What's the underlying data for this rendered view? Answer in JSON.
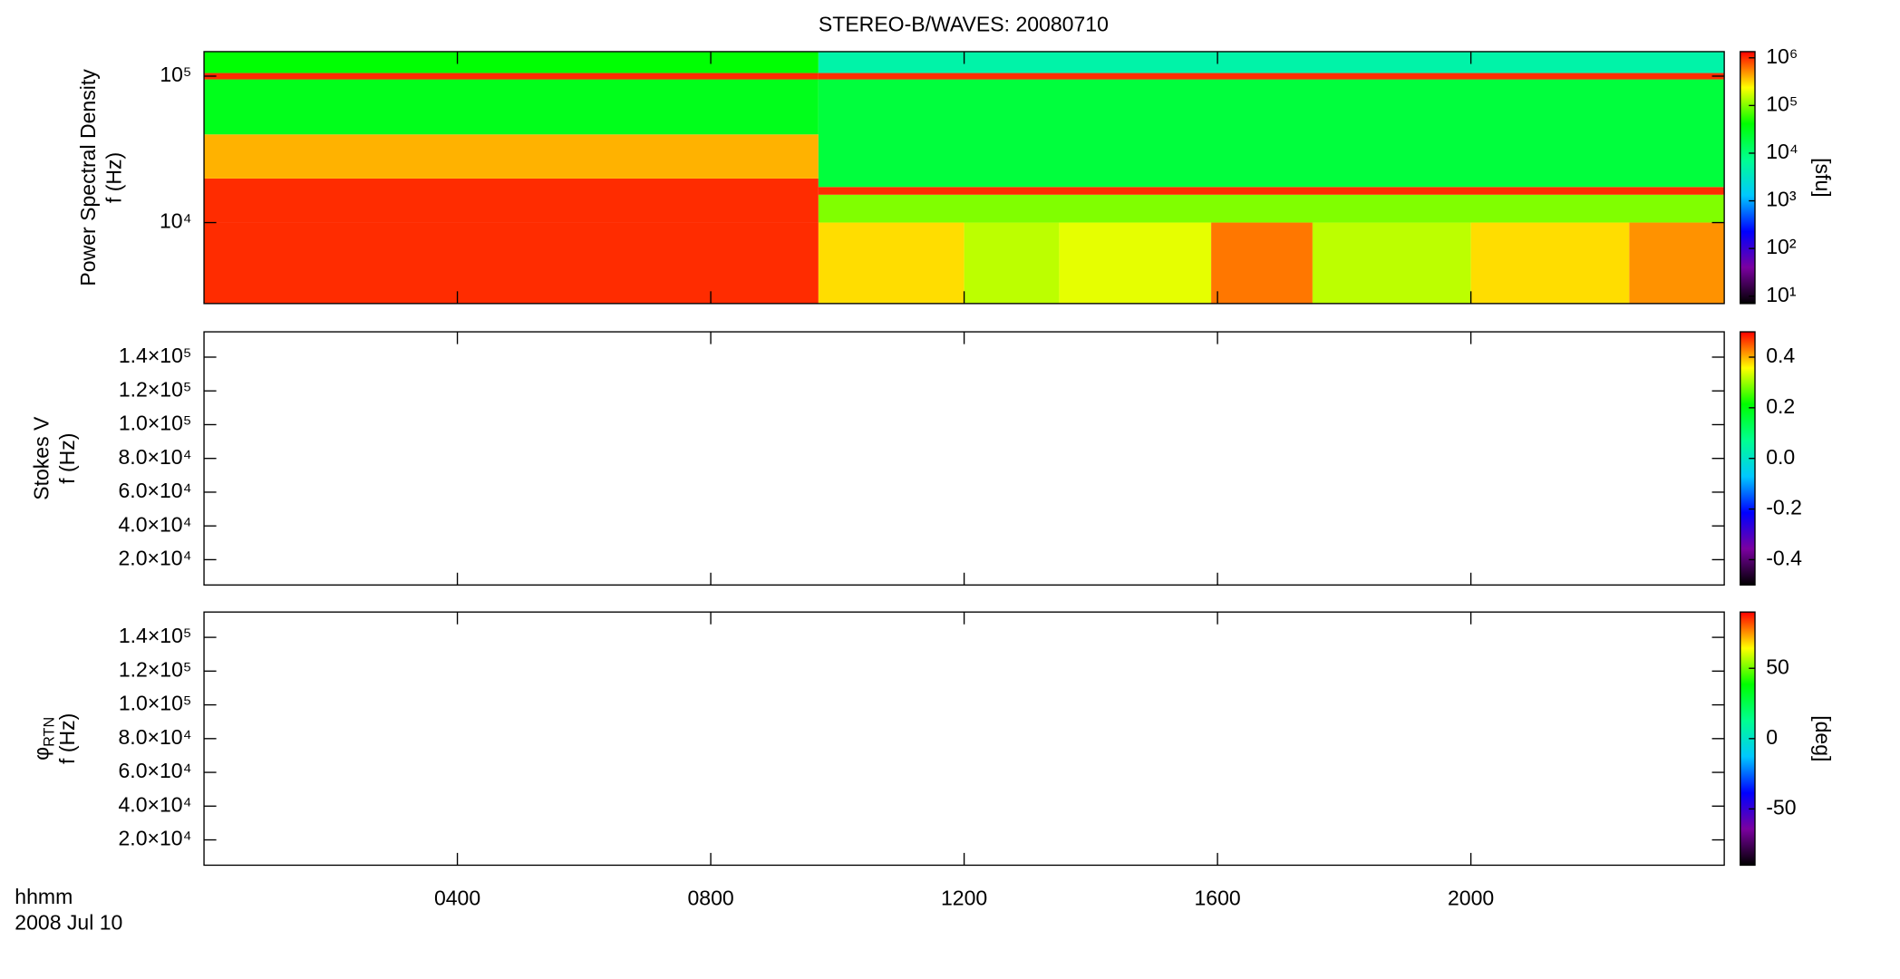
{
  "title": "STEREO-B/WAVES: 20080710",
  "chart_data": [
    {
      "type": "heatmap",
      "y_label": "Power Spectral Density",
      "y_unit": "f (Hz)",
      "xlim": [
        0,
        24
      ],
      "xticks": [
        4,
        8,
        12,
        16,
        20
      ],
      "ylim": [
        2800,
        147000
      ],
      "ylog": true,
      "yticks": [
        {
          "value": 10000,
          "label": "10⁴"
        },
        {
          "value": 100000,
          "label": "10⁵"
        }
      ],
      "clim": [
        7,
        1350000
      ],
      "clog": true,
      "cticks": [
        {
          "value": 10,
          "label": "10¹"
        },
        {
          "value": 100,
          "label": "10²"
        },
        {
          "value": 1000,
          "label": "10³"
        },
        {
          "value": 10000,
          "label": "10⁴"
        },
        {
          "value": 100000,
          "label": "10⁵"
        },
        {
          "value": 1000000,
          "label": "10⁶"
        }
      ],
      "c_label": "[sfu]",
      "colormap": [
        "#000000",
        "#7a00a0",
        "#0000ff",
        "#00c8ff",
        "#00ff90",
        "#00ff00",
        "#ffff00",
        "#ff0000"
      ],
      "cells": [
        {
          "t": [
            0,
            9.7
          ],
          "f": [
            2800,
            10000
          ],
          "value": 1000000
        },
        {
          "t": [
            0,
            9.7
          ],
          "f": [
            10000,
            20000
          ],
          "value": 1000000
        },
        {
          "t": [
            0,
            9.7
          ],
          "f": [
            20000,
            40000
          ],
          "value": 400000
        },
        {
          "t": [
            0,
            9.7
          ],
          "f": [
            40000,
            95000
          ],
          "value": 30000
        },
        {
          "t": [
            0,
            9.7
          ],
          "f": [
            95000,
            105000
          ],
          "value": 1000000
        },
        {
          "t": [
            0,
            9.7
          ],
          "f": [
            105000,
            147000
          ],
          "value": 40000
        },
        {
          "t": [
            9.7,
            24
          ],
          "f": [
            10000,
            15500
          ],
          "value": 100000
        },
        {
          "t": [
            9.7,
            24
          ],
          "f": [
            15500,
            17500
          ],
          "value": 1000000
        },
        {
          "t": [
            9.7,
            24
          ],
          "f": [
            17500,
            95000
          ],
          "value": 20000
        },
        {
          "t": [
            9.7,
            24
          ],
          "f": [
            95000,
            105000
          ],
          "value": 1000000
        },
        {
          "t": [
            9.7,
            24
          ],
          "f": [
            105000,
            147000
          ],
          "value": 5000
        },
        {
          "t": [
            9.7,
            12
          ],
          "f": [
            2800,
            10000
          ],
          "value": 300000
        },
        {
          "t": [
            12,
            13.5
          ],
          "f": [
            2800,
            10000
          ],
          "value": 150000
        },
        {
          "t": [
            13.5,
            15.9
          ],
          "f": [
            2800,
            10000
          ],
          "value": 200000
        },
        {
          "t": [
            15.9,
            17.5
          ],
          "f": [
            2800,
            10000
          ],
          "value": 600000
        },
        {
          "t": [
            17.5,
            20
          ],
          "f": [
            2800,
            10000
          ],
          "value": 150000
        },
        {
          "t": [
            20,
            22.5
          ],
          "f": [
            2800,
            10000
          ],
          "value": 300000
        },
        {
          "t": [
            22.5,
            24
          ],
          "f": [
            2800,
            10000
          ],
          "value": 500000
        }
      ]
    },
    {
      "type": "heatmap",
      "y_label": "Stokes V",
      "y_unit": "f (Hz)",
      "xlim": [
        0,
        24
      ],
      "xticks": [
        4,
        8,
        12,
        16,
        20
      ],
      "ylim": [
        5000,
        155000
      ],
      "ylog": false,
      "yticks": [
        {
          "value": 20000,
          "label": "2.0×10⁴"
        },
        {
          "value": 40000,
          "label": "4.0×10⁴"
        },
        {
          "value": 60000,
          "label": "6.0×10⁴"
        },
        {
          "value": 80000,
          "label": "8.0×10⁴"
        },
        {
          "value": 100000,
          "label": "1.0×10⁵"
        },
        {
          "value": 120000,
          "label": "1.2×10⁵"
        },
        {
          "value": 140000,
          "label": "1.4×10⁵"
        }
      ],
      "clim": [
        -0.5,
        0.5
      ],
      "clog": false,
      "cticks": [
        -0.4,
        -0.2,
        {
          "value": 0,
          "label": "0.0"
        },
        0.2,
        0.4
      ],
      "colormap": [
        "#000000",
        "#7a00a0",
        "#0000ff",
        "#00c8ff",
        "#00ff90",
        "#00ff00",
        "#ffff00",
        "#ff0000"
      ],
      "cells": []
    },
    {
      "type": "heatmap",
      "y_label": "φ",
      "y_label_sub": "RTN",
      "y_unit": "f (Hz)",
      "xlim": [
        0,
        24
      ],
      "xticks": [
        {
          "value": 4,
          "label": "0400"
        },
        {
          "value": 8,
          "label": "0800"
        },
        {
          "value": 12,
          "label": "1200"
        },
        {
          "value": 16,
          "label": "1600"
        },
        {
          "value": 20,
          "label": "2000"
        }
      ],
      "x_label": "hhmm",
      "date": "2008 Jul 10",
      "ylim": [
        5000,
        155000
      ],
      "ylog": false,
      "yticks": [
        {
          "value": 20000,
          "label": "2.0×10⁴"
        },
        {
          "value": 40000,
          "label": "4.0×10⁴"
        },
        {
          "value": 60000,
          "label": "6.0×10⁴"
        },
        {
          "value": 80000,
          "label": "8.0×10⁴"
        },
        {
          "value": 100000,
          "label": "1.0×10⁵"
        },
        {
          "value": 120000,
          "label": "1.2×10⁵"
        },
        {
          "value": 140000,
          "label": "1.4×10⁵"
        }
      ],
      "clim": [
        -90,
        90
      ],
      "clog": false,
      "cticks": [
        -50,
        0,
        50
      ],
      "c_label": "[deg]",
      "colormap": [
        "#000000",
        "#7a00a0",
        "#0000ff",
        "#00c8ff",
        "#00ff90",
        "#00ff00",
        "#ffff00",
        "#ff0000"
      ],
      "cells": []
    }
  ]
}
